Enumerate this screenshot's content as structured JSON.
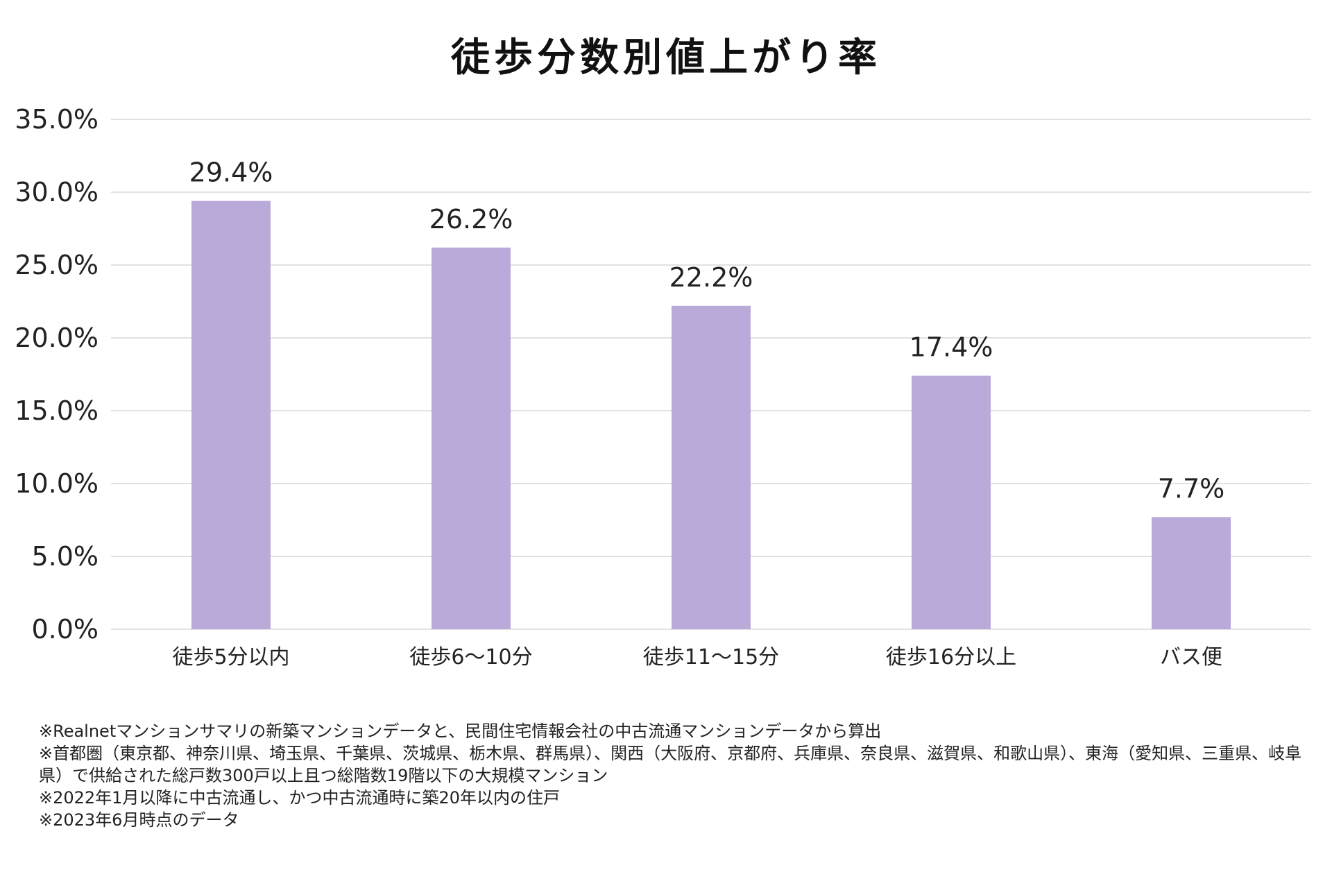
{
  "chart_data": {
    "type": "bar",
    "title": "徒歩分数別値上がり率",
    "categories": [
      "徒歩5分以内",
      "徒歩6〜10分",
      "徒歩11〜15分",
      "徒歩16分以上",
      "バス便"
    ],
    "values": [
      29.4,
      26.2,
      22.2,
      17.4,
      7.7
    ],
    "data_labels": [
      "29.4%",
      "26.2%",
      "22.2%",
      "17.4%",
      "7.7%"
    ],
    "yticks": [
      "0.0%",
      "5.0%",
      "10.0%",
      "15.0%",
      "20.0%",
      "25.0%",
      "30.0%",
      "35.0%"
    ],
    "ylim": [
      0,
      35
    ],
    "xlabel": "",
    "ylabel": "",
    "grid": true,
    "bar_color": "#baaad9"
  },
  "notes": [
    "※Realnetマンションサマリの新築マンションデータと、民間住宅情報会社の中古流通マンションデータから算出",
    "※首都圏（東京都、神奈川県、埼玉県、千葉県、茨城県、栃木県、群馬県）、関西（大阪府、京都府、兵庫県、奈良県、滋賀県、和歌山県）、東海（愛知県、三重県、岐阜県）で供給された総戸数300戸以上且つ総階数19階以下の大規模マンション",
    "※2022年1月以降に中古流通し、かつ中古流通時に築20年以内の住戸",
    "※2023年6月時点のデータ"
  ]
}
